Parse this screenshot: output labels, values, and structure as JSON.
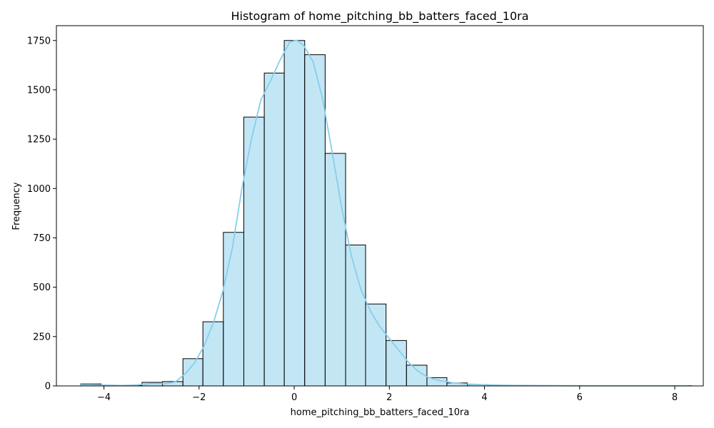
{
  "chart_data": {
    "type": "bar",
    "title": "Histogram of home_pitching_bb_batters_faced_10ra",
    "xlabel": "home_pitching_bb_batters_faced_10ra",
    "ylabel": "Frequency",
    "xlim": [
      -5.0,
      8.6
    ],
    "ylim": [
      0,
      1825
    ],
    "x_ticks": [
      -4,
      -2,
      0,
      2,
      4,
      6,
      8
    ],
    "x_tick_labels": [
      "−4",
      "−2",
      "0",
      "2",
      "4",
      "6",
      "8"
    ],
    "y_ticks": [
      0,
      250,
      500,
      750,
      1000,
      1250,
      1500,
      1750
    ],
    "y_tick_labels": [
      "0",
      "250",
      "500",
      "750",
      "1000",
      "1250",
      "1500",
      "1750"
    ],
    "grid": false,
    "colors": {
      "bar_fill": "#87ceeb",
      "bar_edge": "#000000",
      "kde_line": "#87ceeb"
    },
    "bins": [
      {
        "x0": -4.49,
        "x1": -4.06,
        "count": 10
      },
      {
        "x0": -4.06,
        "x1": -3.63,
        "count": 1
      },
      {
        "x0": -3.63,
        "x1": -3.2,
        "count": 2
      },
      {
        "x0": -3.2,
        "x1": -2.77,
        "count": 18
      },
      {
        "x0": -2.77,
        "x1": -2.34,
        "count": 22
      },
      {
        "x0": -2.34,
        "x1": -1.92,
        "count": 138
      },
      {
        "x0": -1.92,
        "x1": -1.49,
        "count": 325
      },
      {
        "x0": -1.49,
        "x1": -1.06,
        "count": 778
      },
      {
        "x0": -1.06,
        "x1": -0.63,
        "count": 1362
      },
      {
        "x0": -0.63,
        "x1": -0.21,
        "count": 1585
      },
      {
        "x0": -0.21,
        "x1": 0.22,
        "count": 1750
      },
      {
        "x0": 0.22,
        "x1": 0.65,
        "count": 1678
      },
      {
        "x0": 0.65,
        "x1": 1.08,
        "count": 1178
      },
      {
        "x0": 1.08,
        "x1": 1.5,
        "count": 714
      },
      {
        "x0": 1.5,
        "x1": 1.93,
        "count": 415
      },
      {
        "x0": 1.93,
        "x1": 2.36,
        "count": 230
      },
      {
        "x0": 2.36,
        "x1": 2.79,
        "count": 105
      },
      {
        "x0": 2.79,
        "x1": 3.21,
        "count": 42
      },
      {
        "x0": 3.21,
        "x1": 3.64,
        "count": 15
      },
      {
        "x0": 3.64,
        "x1": 4.07,
        "count": 7
      },
      {
        "x0": 4.07,
        "x1": 4.5,
        "count": 3
      },
      {
        "x0": 4.5,
        "x1": 4.93,
        "count": 2
      },
      {
        "x0": 4.93,
        "x1": 5.35,
        "count": 1
      },
      {
        "x0": 5.35,
        "x1": 5.78,
        "count": 1
      },
      {
        "x0": 5.78,
        "x1": 6.21,
        "count": 0
      },
      {
        "x0": 6.21,
        "x1": 6.64,
        "count": 0
      },
      {
        "x0": 6.64,
        "x1": 7.06,
        "count": 0
      },
      {
        "x0": 7.06,
        "x1": 7.49,
        "count": 0
      },
      {
        "x0": 7.49,
        "x1": 7.92,
        "count": 0
      },
      {
        "x0": 7.92,
        "x1": 8.35,
        "count": 1
      }
    ],
    "kde": [
      {
        "x": -4.5,
        "y": 6
      },
      {
        "x": -4.3,
        "y": 6
      },
      {
        "x": -4.0,
        "y": 4
      },
      {
        "x": -3.6,
        "y": 2
      },
      {
        "x": -3.3,
        "y": 5
      },
      {
        "x": -3.0,
        "y": 12
      },
      {
        "x": -2.7,
        "y": 12
      },
      {
        "x": -2.5,
        "y": 20
      },
      {
        "x": -2.3,
        "y": 60
      },
      {
        "x": -2.1,
        "y": 115
      },
      {
        "x": -1.9,
        "y": 200
      },
      {
        "x": -1.7,
        "y": 320
      },
      {
        "x": -1.5,
        "y": 480
      },
      {
        "x": -1.3,
        "y": 700
      },
      {
        "x": -1.1,
        "y": 1000
      },
      {
        "x": -0.9,
        "y": 1250
      },
      {
        "x": -0.7,
        "y": 1450
      },
      {
        "x": -0.5,
        "y": 1545
      },
      {
        "x": -0.3,
        "y": 1650
      },
      {
        "x": -0.1,
        "y": 1740
      },
      {
        "x": 0.05,
        "y": 1752
      },
      {
        "x": 0.2,
        "y": 1725
      },
      {
        "x": 0.4,
        "y": 1640
      },
      {
        "x": 0.6,
        "y": 1450
      },
      {
        "x": 0.8,
        "y": 1180
      },
      {
        "x": 1.0,
        "y": 900
      },
      {
        "x": 1.2,
        "y": 660
      },
      {
        "x": 1.4,
        "y": 490
      },
      {
        "x": 1.6,
        "y": 380
      },
      {
        "x": 1.8,
        "y": 300
      },
      {
        "x": 2.0,
        "y": 240
      },
      {
        "x": 2.2,
        "y": 180
      },
      {
        "x": 2.4,
        "y": 120
      },
      {
        "x": 2.6,
        "y": 75
      },
      {
        "x": 2.8,
        "y": 45
      },
      {
        "x": 3.0,
        "y": 30
      },
      {
        "x": 3.3,
        "y": 17
      },
      {
        "x": 3.6,
        "y": 10
      },
      {
        "x": 4.0,
        "y": 6
      },
      {
        "x": 4.5,
        "y": 3
      },
      {
        "x": 5.0,
        "y": 2
      },
      {
        "x": 6.0,
        "y": 1
      },
      {
        "x": 7.0,
        "y": 1
      },
      {
        "x": 8.3,
        "y": 1
      }
    ]
  }
}
